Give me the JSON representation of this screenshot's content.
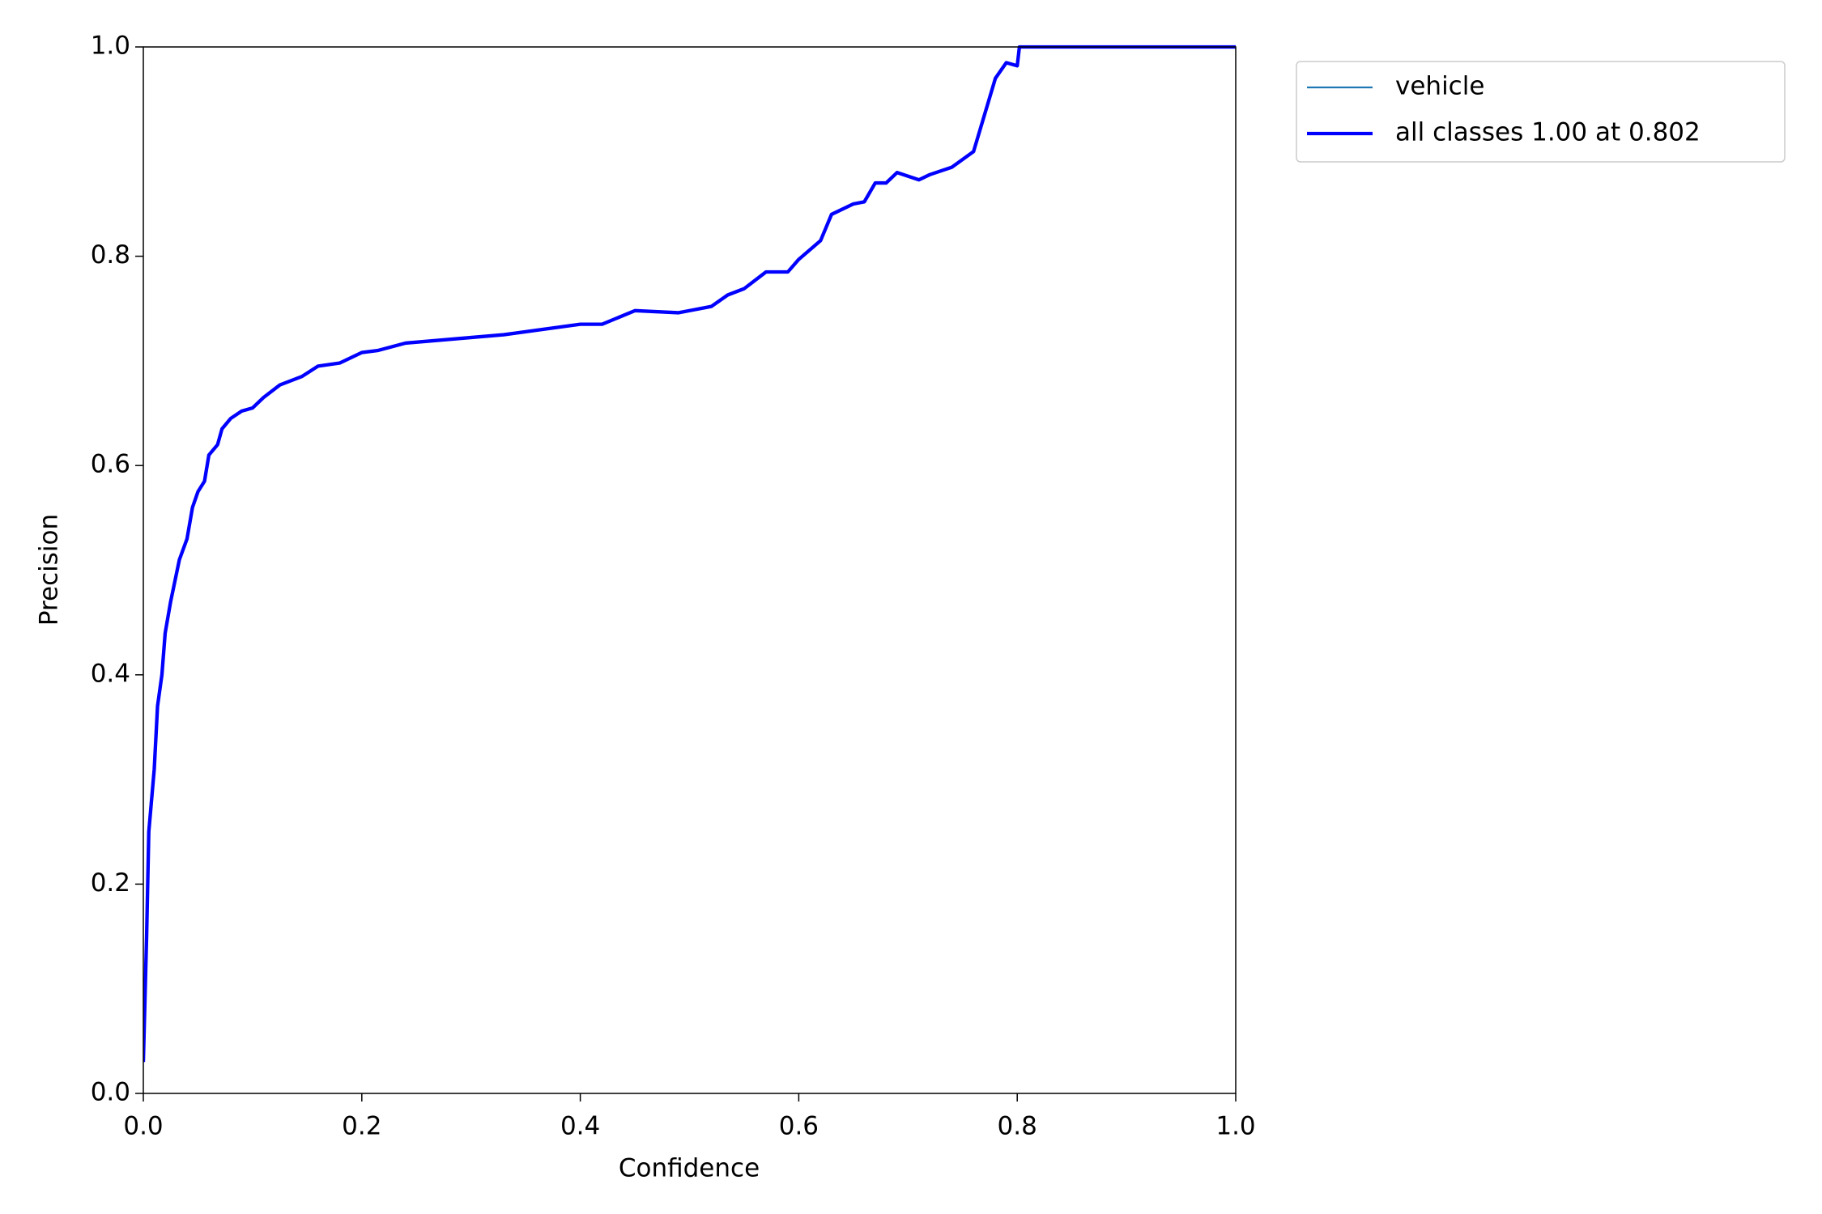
{
  "chart_data": {
    "type": "line",
    "xlabel": "Confidence",
    "ylabel": "Precision",
    "x": [
      0.0,
      0.003,
      0.005,
      0.01,
      0.013,
      0.017,
      0.02,
      0.025,
      0.033,
      0.04,
      0.045,
      0.05,
      0.056,
      0.06,
      0.068,
      0.072,
      0.08,
      0.09,
      0.1,
      0.11,
      0.125,
      0.145,
      0.16,
      0.18,
      0.2,
      0.215,
      0.24,
      0.33,
      0.4,
      0.42,
      0.45,
      0.49,
      0.52,
      0.535,
      0.55,
      0.57,
      0.59,
      0.6,
      0.62,
      0.63,
      0.65,
      0.66,
      0.67,
      0.68,
      0.69,
      0.71,
      0.72,
      0.74,
      0.76,
      0.77,
      0.78,
      0.79,
      0.8,
      0.802,
      1.0
    ],
    "series": [
      {
        "name": "vehicle",
        "color": "#1f77b4",
        "width": 1.5,
        "values": [
          0.03,
          0.15,
          0.25,
          0.31,
          0.37,
          0.4,
          0.44,
          0.47,
          0.51,
          0.53,
          0.56,
          0.575,
          0.585,
          0.61,
          0.62,
          0.635,
          0.645,
          0.652,
          0.655,
          0.665,
          0.677,
          0.685,
          0.695,
          0.698,
          0.708,
          0.71,
          0.717,
          0.725,
          0.735,
          0.735,
          0.748,
          0.746,
          0.752,
          0.763,
          0.769,
          0.785,
          0.785,
          0.797,
          0.815,
          0.84,
          0.85,
          0.852,
          0.87,
          0.87,
          0.88,
          0.873,
          0.878,
          0.885,
          0.9,
          0.935,
          0.97,
          0.985,
          0.982,
          1.0,
          1.0
        ]
      },
      {
        "name": "all classes 1.00 at 0.802",
        "color": "#0000ff",
        "width": 3,
        "values": [
          0.03,
          0.15,
          0.25,
          0.31,
          0.37,
          0.4,
          0.44,
          0.47,
          0.51,
          0.53,
          0.56,
          0.575,
          0.585,
          0.61,
          0.62,
          0.635,
          0.645,
          0.652,
          0.655,
          0.665,
          0.677,
          0.685,
          0.695,
          0.698,
          0.708,
          0.71,
          0.717,
          0.725,
          0.735,
          0.735,
          0.748,
          0.746,
          0.752,
          0.763,
          0.769,
          0.785,
          0.785,
          0.797,
          0.815,
          0.84,
          0.85,
          0.852,
          0.87,
          0.87,
          0.88,
          0.873,
          0.878,
          0.885,
          0.9,
          0.935,
          0.97,
          0.985,
          0.982,
          1.0,
          1.0
        ]
      }
    ],
    "xlim": [
      0,
      1
    ],
    "ylim": [
      0,
      1
    ],
    "xticks": [
      {
        "value": 0,
        "label": "0.0"
      },
      0.2,
      0.4,
      0.6,
      0.8,
      {
        "value": 1,
        "label": "1.0"
      }
    ],
    "yticks": [
      {
        "value": 0,
        "label": "0.0"
      },
      0.2,
      0.4,
      0.6,
      0.8,
      {
        "value": 1,
        "label": "1.0"
      }
    ],
    "grid": false,
    "legend": "outside upper right"
  }
}
